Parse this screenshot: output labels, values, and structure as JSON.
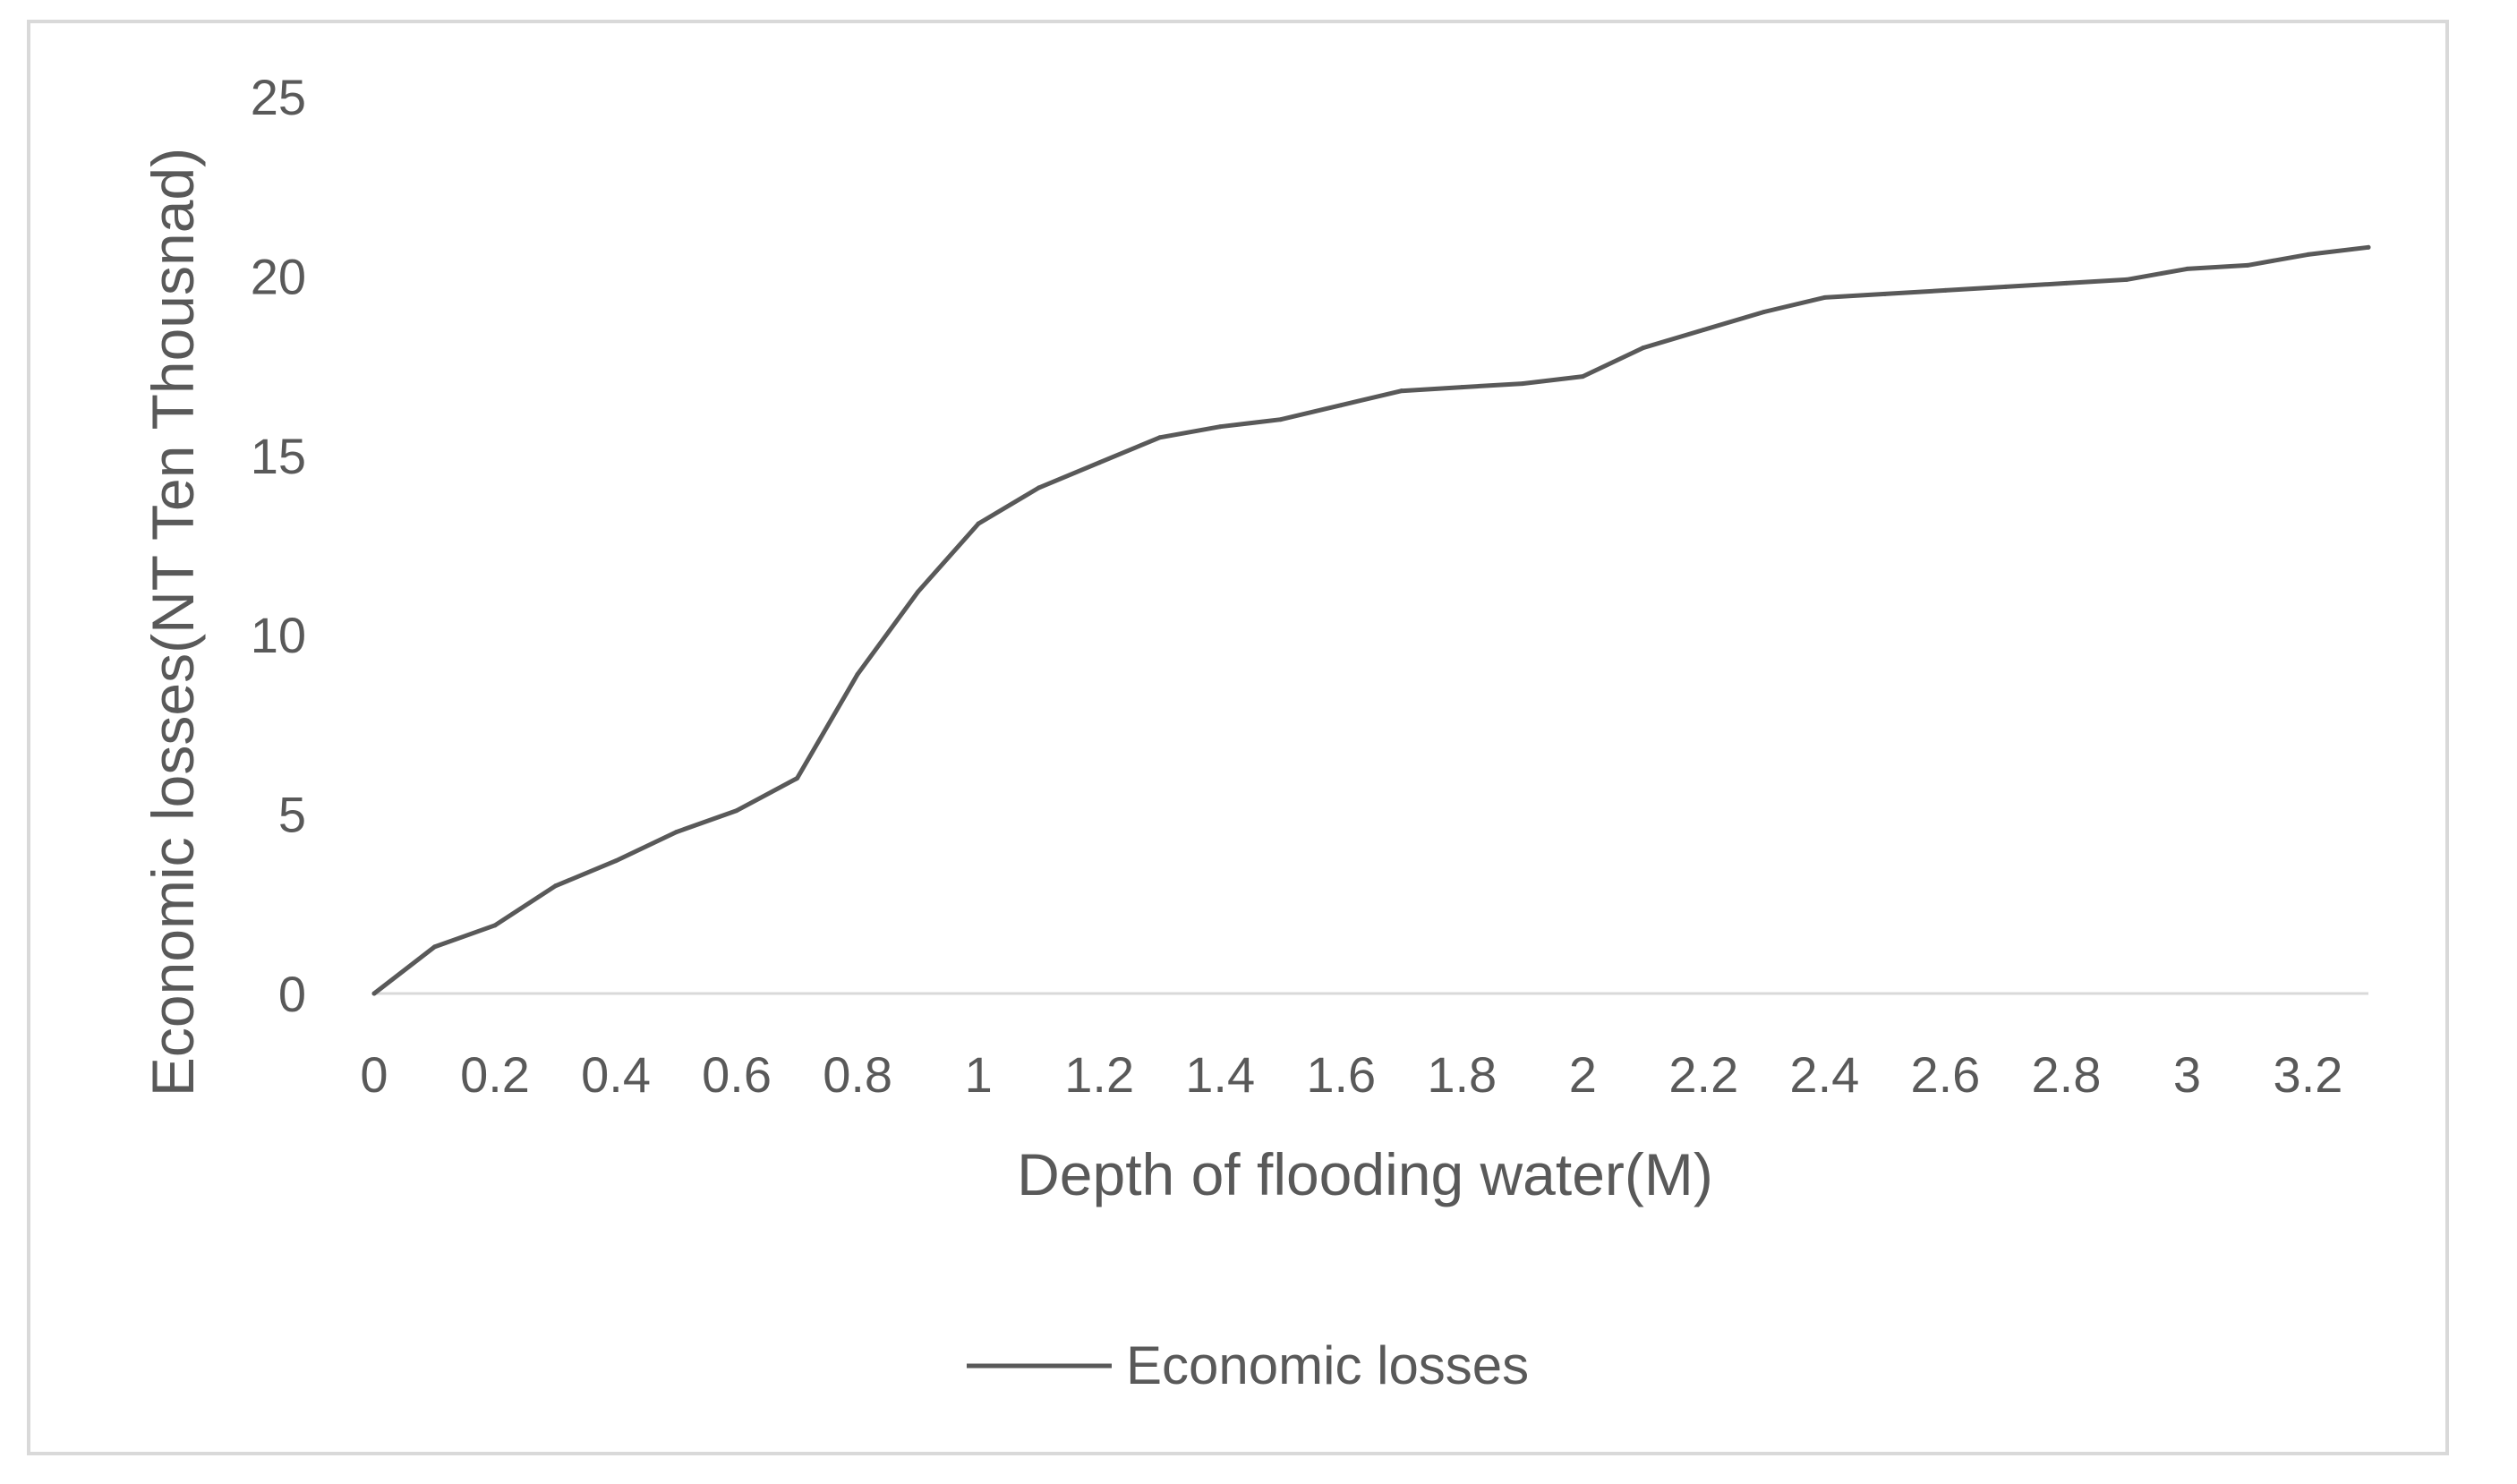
{
  "chart_data": {
    "type": "line",
    "title": "",
    "xlabel": "Depth of flooding water(M)",
    "ylabel": "Economic losses(NT Ten Thousnad)",
    "xlim": [
      0,
      3.3
    ],
    "ylim": [
      0,
      25
    ],
    "x_ticks": [
      "0",
      "0.2",
      "0.4",
      "0.6",
      "0.8",
      "1",
      "1.2",
      "1.4",
      "1.6",
      "1.8",
      "2",
      "2.2",
      "2.4",
      "2.6",
      "2.8",
      "3",
      "3.2"
    ],
    "x_tick_values": [
      0,
      0.2,
      0.4,
      0.6,
      0.8,
      1.0,
      1.2,
      1.4,
      1.6,
      1.8,
      2.0,
      2.2,
      2.4,
      2.6,
      2.8,
      3.0,
      3.2
    ],
    "y_ticks": [
      "0",
      "5",
      "10",
      "15",
      "20",
      "25"
    ],
    "y_tick_values": [
      0,
      5,
      10,
      15,
      20,
      25
    ],
    "grid": false,
    "legend_position": "bottom",
    "series": [
      {
        "name": "Economic losses",
        "color": "#595959",
        "x": [
          0,
          0.1,
          0.2,
          0.3,
          0.4,
          0.5,
          0.6,
          0.7,
          0.8,
          0.9,
          1.0,
          1.1,
          1.2,
          1.3,
          1.4,
          1.5,
          1.6,
          1.7,
          1.8,
          1.9,
          2.0,
          2.1,
          2.2,
          2.3,
          2.4,
          2.5,
          2.6,
          2.7,
          2.8,
          2.9,
          3.0,
          3.1,
          3.2,
          3.3
        ],
        "values": [
          0,
          1.3,
          1.9,
          3.0,
          3.7,
          4.5,
          5.1,
          6.0,
          8.9,
          11.2,
          13.1,
          14.1,
          14.8,
          15.5,
          15.8,
          16.0,
          16.4,
          16.8,
          16.9,
          17.0,
          17.2,
          18.0,
          18.5,
          19.0,
          19.4,
          19.5,
          19.6,
          19.7,
          19.8,
          19.9,
          20.2,
          20.3,
          20.6,
          20.8
        ]
      }
    ]
  }
}
